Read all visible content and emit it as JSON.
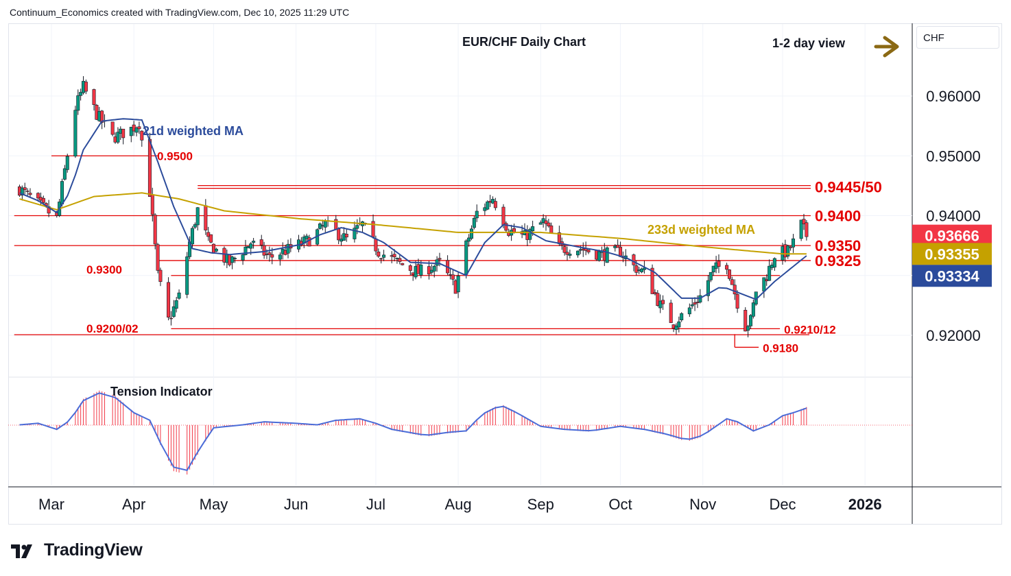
{
  "header": {
    "credit": "Continuum_Economics created with TradingView.com, Dec 10, 2025 11:29 UTC"
  },
  "brand": {
    "name": "TradingView"
  },
  "colors": {
    "up": "#089981",
    "down": "#f23645",
    "level": "#e40000",
    "wma21": "#2b4b9b",
    "wma233": "#c5a100",
    "tension_line": "#4a6cd8",
    "tension_hist": "#f23645",
    "arrow": "#8b6914",
    "text": "#131722"
  },
  "chart_data": [
    {
      "type": "candlestick",
      "title": "EUR/CHF Daily Chart",
      "subtitle": "1-2 day view",
      "symbol_tag": "CHF",
      "x_ticks": [
        "Mar",
        "Apr",
        "May",
        "Jun",
        "Jul",
        "Aug",
        "Sep",
        "Oct",
        "Nov",
        "Dec",
        "2026"
      ],
      "y_ticks": [
        "0.96000",
        "0.95000",
        "0.94000",
        "0.92000"
      ],
      "ylim": [
        0.9145,
        0.9695
      ],
      "grid": true,
      "series": [
        {
          "name": "21d weighted MA",
          "anchors": [
            [
              "2025-02-17",
              0.9438
            ],
            [
              "2025-02-24",
              0.9425
            ],
            [
              "2025-03-03",
              0.9405
            ],
            [
              "2025-03-08",
              0.944
            ],
            [
              "2025-03-13",
              0.951
            ],
            [
              "2025-03-20",
              0.9558
            ],
            [
              "2025-03-28",
              0.9562
            ],
            [
              "2025-04-04",
              0.956
            ],
            [
              "2025-04-10",
              0.949
            ],
            [
              "2025-04-16",
              0.9415
            ],
            [
              "2025-04-23",
              0.9345
            ],
            [
              "2025-04-30",
              0.9338
            ],
            [
              "2025-05-07",
              0.9335
            ],
            [
              "2025-05-20",
              0.934
            ],
            [
              "2025-06-03",
              0.9352
            ],
            [
              "2025-06-10",
              0.9368
            ],
            [
              "2025-06-18",
              0.938
            ],
            [
              "2025-06-26",
              0.9372
            ],
            [
              "2025-07-04",
              0.9355
            ],
            [
              "2025-07-14",
              0.9322
            ],
            [
              "2025-07-25",
              0.932
            ],
            [
              "2025-08-04",
              0.93
            ],
            [
              "2025-08-11",
              0.9355
            ],
            [
              "2025-08-18",
              0.9385
            ],
            [
              "2025-08-25",
              0.938
            ],
            [
              "2025-09-03",
              0.9358
            ],
            [
              "2025-09-15",
              0.9348
            ],
            [
              "2025-09-25",
              0.934
            ],
            [
              "2025-10-03",
              0.933
            ],
            [
              "2025-10-14",
              0.9305
            ],
            [
              "2025-10-24",
              0.9262
            ],
            [
              "2025-10-31",
              0.9262
            ],
            [
              "2025-11-08",
              0.9282
            ],
            [
              "2025-11-14",
              0.9272
            ],
            [
              "2025-11-21",
              0.926
            ],
            [
              "2025-11-28",
              0.929
            ],
            [
              "2025-12-10",
              0.9333
            ]
          ],
          "last_value": "0.93334"
        },
        {
          "name": "233d weighted MA",
          "anchors": [
            [
              "2025-02-17",
              0.9428
            ],
            [
              "2025-03-03",
              0.941
            ],
            [
              "2025-03-17",
              0.9432
            ],
            [
              "2025-04-04",
              0.9438
            ],
            [
              "2025-04-18",
              0.9428
            ],
            [
              "2025-05-05",
              0.9408
            ],
            [
              "2025-06-02",
              0.9395
            ],
            [
              "2025-07-01",
              0.9385
            ],
            [
              "2025-08-01",
              0.9372
            ],
            [
              "2025-09-01",
              0.9372
            ],
            [
              "2025-10-01",
              0.9362
            ],
            [
              "2025-11-01",
              0.9348
            ],
            [
              "2025-12-01",
              0.9336
            ],
            [
              "2025-12-10",
              0.9336
            ]
          ],
          "last_value": "0.93355"
        }
      ],
      "last_price": "0.93666",
      "ohlc_anchor_closes": [
        [
          "2025-02-17",
          0.9445
        ],
        [
          "2025-02-24",
          0.942
        ],
        [
          "2025-03-03",
          0.9395
        ],
        [
          "2025-03-06",
          0.9475
        ],
        [
          "2025-03-10",
          0.958
        ],
        [
          "2025-03-13",
          0.9615
        ],
        [
          "2025-03-18",
          0.957
        ],
        [
          "2025-03-24",
          0.953
        ],
        [
          "2025-03-31",
          0.9545
        ],
        [
          "2025-04-03",
          0.9555
        ],
        [
          "2025-04-07",
          0.944
        ],
        [
          "2025-04-10",
          0.93
        ],
        [
          "2025-04-14",
          0.9225
        ],
        [
          "2025-04-18",
          0.9265
        ],
        [
          "2025-04-22",
          0.9355
        ],
        [
          "2025-04-25",
          0.941
        ],
        [
          "2025-04-29",
          0.9355
        ],
        [
          "2025-05-07",
          0.932
        ],
        [
          "2025-05-15",
          0.9355
        ],
        [
          "2025-05-22",
          0.933
        ],
        [
          "2025-05-30",
          0.9345
        ],
        [
          "2025-06-06",
          0.936
        ],
        [
          "2025-06-12",
          0.9385
        ],
        [
          "2025-06-20",
          0.936
        ],
        [
          "2025-06-26",
          0.9385
        ],
        [
          "2025-07-02",
          0.934
        ],
        [
          "2025-07-10",
          0.932
        ],
        [
          "2025-07-17",
          0.9305
        ],
        [
          "2025-07-25",
          0.932
        ],
        [
          "2025-07-31",
          0.928
        ],
        [
          "2025-08-04",
          0.935
        ],
        [
          "2025-08-08",
          0.9405
        ],
        [
          "2025-08-14",
          0.943
        ],
        [
          "2025-08-20",
          0.9375
        ],
        [
          "2025-08-26",
          0.9365
        ],
        [
          "2025-09-02",
          0.939
        ],
        [
          "2025-09-08",
          0.9345
        ],
        [
          "2025-09-16",
          0.9345
        ],
        [
          "2025-09-24",
          0.9335
        ],
        [
          "2025-10-01",
          0.934
        ],
        [
          "2025-10-06",
          0.9315
        ],
        [
          "2025-10-10",
          0.9305
        ],
        [
          "2025-10-16",
          0.925
        ],
        [
          "2025-10-21",
          0.922
        ],
        [
          "2025-10-27",
          0.9245
        ],
        [
          "2025-10-31",
          0.9265
        ],
        [
          "2025-11-05",
          0.931
        ],
        [
          "2025-11-10",
          0.932
        ],
        [
          "2025-11-14",
          0.9255
        ],
        [
          "2025-11-17",
          0.9215
        ],
        [
          "2025-11-19",
          0.9225
        ],
        [
          "2025-11-21",
          0.9275
        ],
        [
          "2025-11-25",
          0.93
        ],
        [
          "2025-11-28",
          0.9335
        ],
        [
          "2025-12-03",
          0.934
        ],
        [
          "2025-12-05",
          0.9355
        ],
        [
          "2025-12-08",
          0.9385
        ],
        [
          "2025-12-10",
          0.9367
        ]
      ],
      "levels": [
        {
          "label": "0.9500",
          "value": 0.95,
          "from": "2025-03-01",
          "to": "2025-04-10",
          "label_pos": "right-of-line"
        },
        {
          "label": "0.9445/50",
          "value": 0.9448,
          "from": "2025-04-25",
          "to": "2025-12-31",
          "double": true,
          "label_pos": "axis"
        },
        {
          "label": "0.9400",
          "value": 0.94,
          "from": "2025-02-15",
          "to": "2025-12-31",
          "label_pos": "axis"
        },
        {
          "label": "0.9350",
          "value": 0.935,
          "from": "2025-02-15",
          "to": "2025-12-31",
          "label_pos": "axis"
        },
        {
          "label": "0.9325",
          "value": 0.9325,
          "from": "2025-04-10",
          "to": "2025-12-31",
          "label_pos": "axis"
        },
        {
          "label": "0.9300",
          "value": 0.93,
          "from": "2025-04-15",
          "to": "2025-11-30",
          "label_pos": "left"
        },
        {
          "label": "0.9200/02",
          "value": 0.9201,
          "from": "2025-02-15",
          "to": "2025-12-31",
          "label_pos": "left"
        },
        {
          "label": "0.9210/12",
          "value": 0.9211,
          "from": "2025-04-15",
          "to": "2025-11-30",
          "label_pos": "end"
        },
        {
          "label": "0.9180",
          "value": 0.918,
          "from": "2025-11-13",
          "to": "2025-11-22",
          "label_pos": "end"
        }
      ],
      "annotations": {
        "wma21_label": "21d weighted MA",
        "wma233_label": "233d weighted MA"
      }
    },
    {
      "type": "histogram-line",
      "title": "Tension Indicator",
      "anchors": [
        [
          "2025-02-17",
          0.0
        ],
        [
          "2025-02-24",
          0.1
        ],
        [
          "2025-03-03",
          -0.3
        ],
        [
          "2025-03-08",
          0.3
        ],
        [
          "2025-03-13",
          1.6
        ],
        [
          "2025-03-19",
          2.1
        ],
        [
          "2025-03-25",
          1.8
        ],
        [
          "2025-04-01",
          0.8
        ],
        [
          "2025-04-07",
          0.3
        ],
        [
          "2025-04-11",
          -1.2
        ],
        [
          "2025-04-16",
          -2.8
        ],
        [
          "2025-04-21",
          -3.0
        ],
        [
          "2025-04-26",
          -1.5
        ],
        [
          "2025-05-01",
          -0.2
        ],
        [
          "2025-05-12",
          0.0
        ],
        [
          "2025-05-20",
          0.2
        ],
        [
          "2025-06-01",
          0.1
        ],
        [
          "2025-06-09",
          0.0
        ],
        [
          "2025-06-16",
          0.3
        ],
        [
          "2025-06-25",
          0.4
        ],
        [
          "2025-07-01",
          0.1
        ],
        [
          "2025-07-07",
          -0.3
        ],
        [
          "2025-07-20",
          -0.7
        ],
        [
          "2025-07-28",
          -0.5
        ],
        [
          "2025-08-04",
          -0.4
        ],
        [
          "2025-08-10",
          0.7
        ],
        [
          "2025-08-17",
          1.3
        ],
        [
          "2025-08-23",
          0.8
        ],
        [
          "2025-09-01",
          -0.1
        ],
        [
          "2025-09-10",
          -0.3
        ],
        [
          "2025-09-20",
          -0.4
        ],
        [
          "2025-10-01",
          -0.1
        ],
        [
          "2025-10-10",
          -0.3
        ],
        [
          "2025-10-18",
          -0.6
        ],
        [
          "2025-10-26",
          -1.0
        ],
        [
          "2025-11-01",
          -0.7
        ],
        [
          "2025-11-10",
          0.4
        ],
        [
          "2025-11-14",
          0.2
        ],
        [
          "2025-11-20",
          -0.4
        ],
        [
          "2025-11-26",
          0.0
        ],
        [
          "2025-12-01",
          0.6
        ],
        [
          "2025-12-05",
          0.8
        ],
        [
          "2025-12-10",
          1.1
        ]
      ],
      "ylim": [
        -3.3,
        2.6
      ]
    }
  ]
}
